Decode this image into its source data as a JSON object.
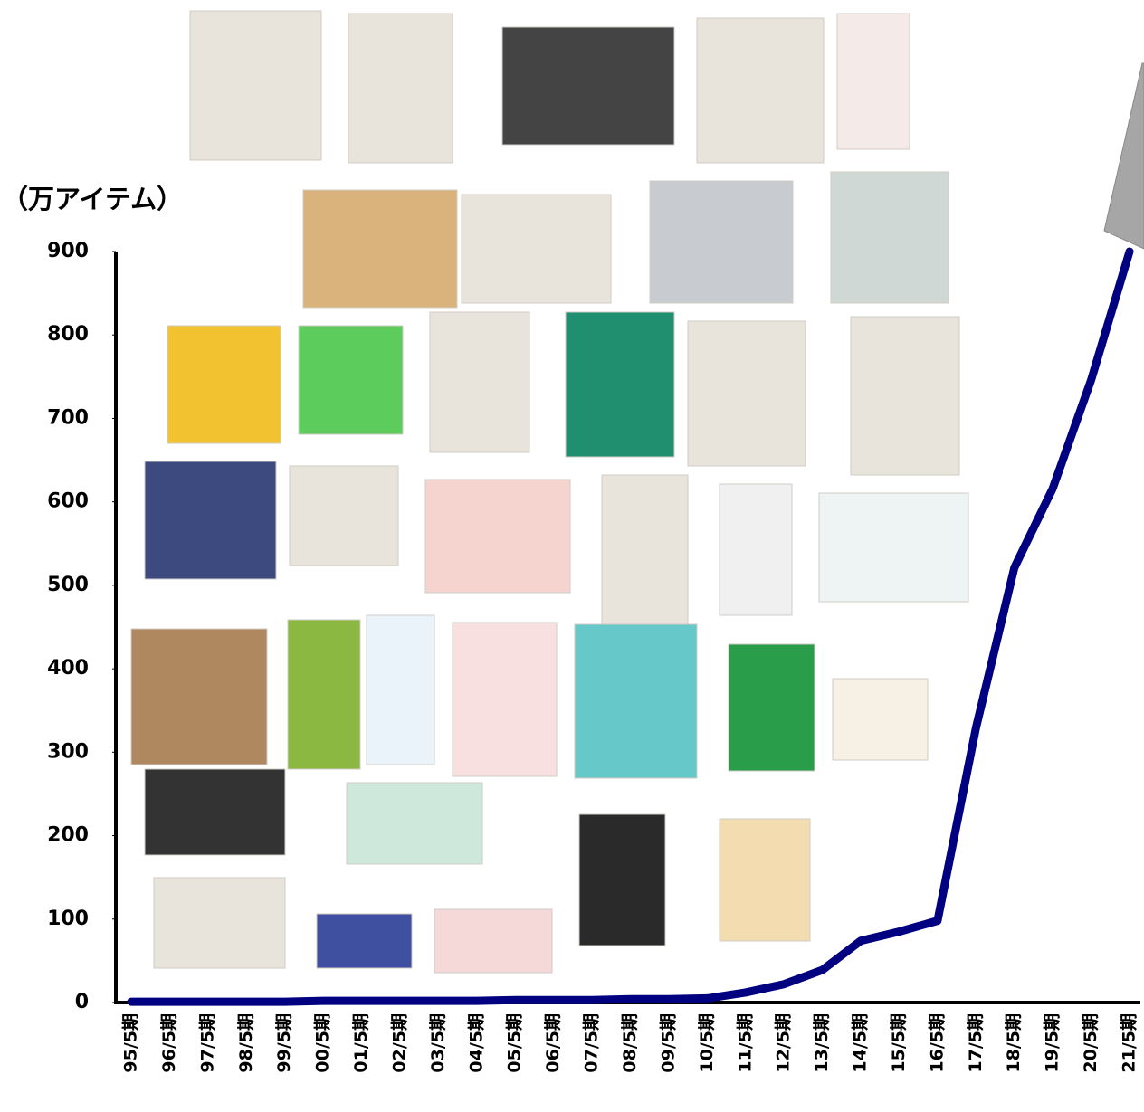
{
  "chart_data": {
    "type": "line",
    "y_label": "（万アイテム）",
    "categories": [
      "95/5期",
      "96/5期",
      "97/5期",
      "98/5期",
      "99/5期",
      "00/5期",
      "01/5期",
      "02/5期",
      "03/5期",
      "04/5期",
      "05/5期",
      "06/5期",
      "07/5期",
      "08/5期",
      "09/5期",
      "10/5期",
      "11/5期",
      "12/5期",
      "13/5期",
      "14/5期",
      "15/5期",
      "16/5期",
      "17/5期",
      "18/5期",
      "19/5期",
      "20/5期",
      "21/5期"
    ],
    "values": [
      1,
      1,
      1,
      1,
      1,
      2,
      2,
      2,
      2,
      2,
      3,
      3,
      3,
      4,
      4,
      5,
      12,
      22,
      39,
      74,
      85,
      98,
      329,
      521,
      616,
      746,
      900
    ],
    "color": "#000080",
    "ylim": [
      0,
      900
    ],
    "yticks": [
      0,
      100,
      200,
      300,
      400,
      500,
      600,
      700,
      800,
      900
    ]
  }
}
